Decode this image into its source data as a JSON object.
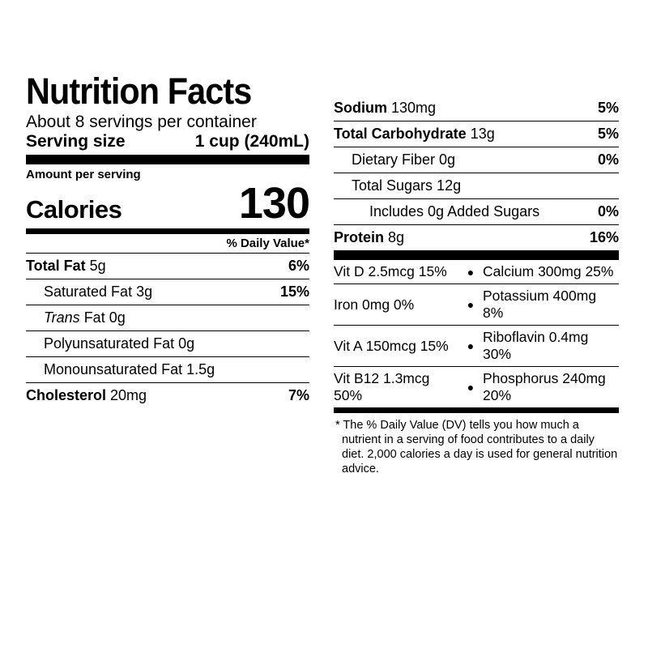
{
  "title": "Nutrition Facts",
  "servings_per_container": "About 8 servings per container",
  "serving_size_label": "Serving size",
  "serving_size_value": "1 cup (240mL)",
  "amount_per_serving": "Amount per serving",
  "calories_label": "Calories",
  "calories_value": "130",
  "dv_header": "% Daily Value*",
  "left_rows": [
    {
      "bold": "Total Fat",
      "rest": " 5g",
      "dv": "6%",
      "indent": 0,
      "italic": false
    },
    {
      "bold": "",
      "rest": "Saturated Fat 3g",
      "dv": "15%",
      "indent": 1,
      "italic": false
    },
    {
      "bold": "",
      "rest": " Fat 0g",
      "prefix_italic": "Trans",
      "dv": "",
      "indent": 1,
      "italic": false
    },
    {
      "bold": "",
      "rest": "Polyunsaturated Fat 0g",
      "dv": "",
      "indent": 1,
      "italic": false
    },
    {
      "bold": "",
      "rest": "Monounsaturated Fat 1.5g",
      "dv": "",
      "indent": 1,
      "italic": false
    },
    {
      "bold": "Cholesterol",
      "rest": " 20mg",
      "dv": "7%",
      "indent": 0,
      "italic": false
    }
  ],
  "right_rows": [
    {
      "bold": "Sodium",
      "rest": " 130mg",
      "dv": "5%",
      "indent": 0
    },
    {
      "bold": "Total Carbohydrate",
      "rest": " 13g",
      "dv": "5%",
      "indent": 0
    },
    {
      "bold": "",
      "rest": "Dietary Fiber 0g",
      "dv": "0%",
      "indent": 1
    },
    {
      "bold": "",
      "rest": "Total Sugars 12g",
      "dv": "",
      "indent": 1
    },
    {
      "bold": "",
      "rest": "Includes 0g Added Sugars",
      "dv": "0%",
      "indent": 2
    },
    {
      "bold": "Protein",
      "rest": " 8g",
      "dv": "16%",
      "indent": 0
    }
  ],
  "micronutrients": [
    {
      "left": "Vit D 2.5mcg 15%",
      "right": "Calcium 300mg 25%"
    },
    {
      "left": "Iron 0mg 0%",
      "right": "Potassium 400mg 8%"
    },
    {
      "left": "Vit A 150mcg 15%",
      "right": "Riboflavin 0.4mg 30%"
    },
    {
      "left": "Vit B12 1.3mcg 50%",
      "right": "Phosphorus 240mg 20%"
    }
  ],
  "footnote": "* The % Daily Value (DV) tells you how much a nutrient in a serving of food contributes to a daily diet. 2,000 calories a day is used for general nutrition advice.",
  "colors": {
    "text": "#000000",
    "background": "#ffffff",
    "rule": "#000000"
  },
  "typography": {
    "title_size": 45,
    "body_size": 18,
    "calories_val_size": 54
  }
}
